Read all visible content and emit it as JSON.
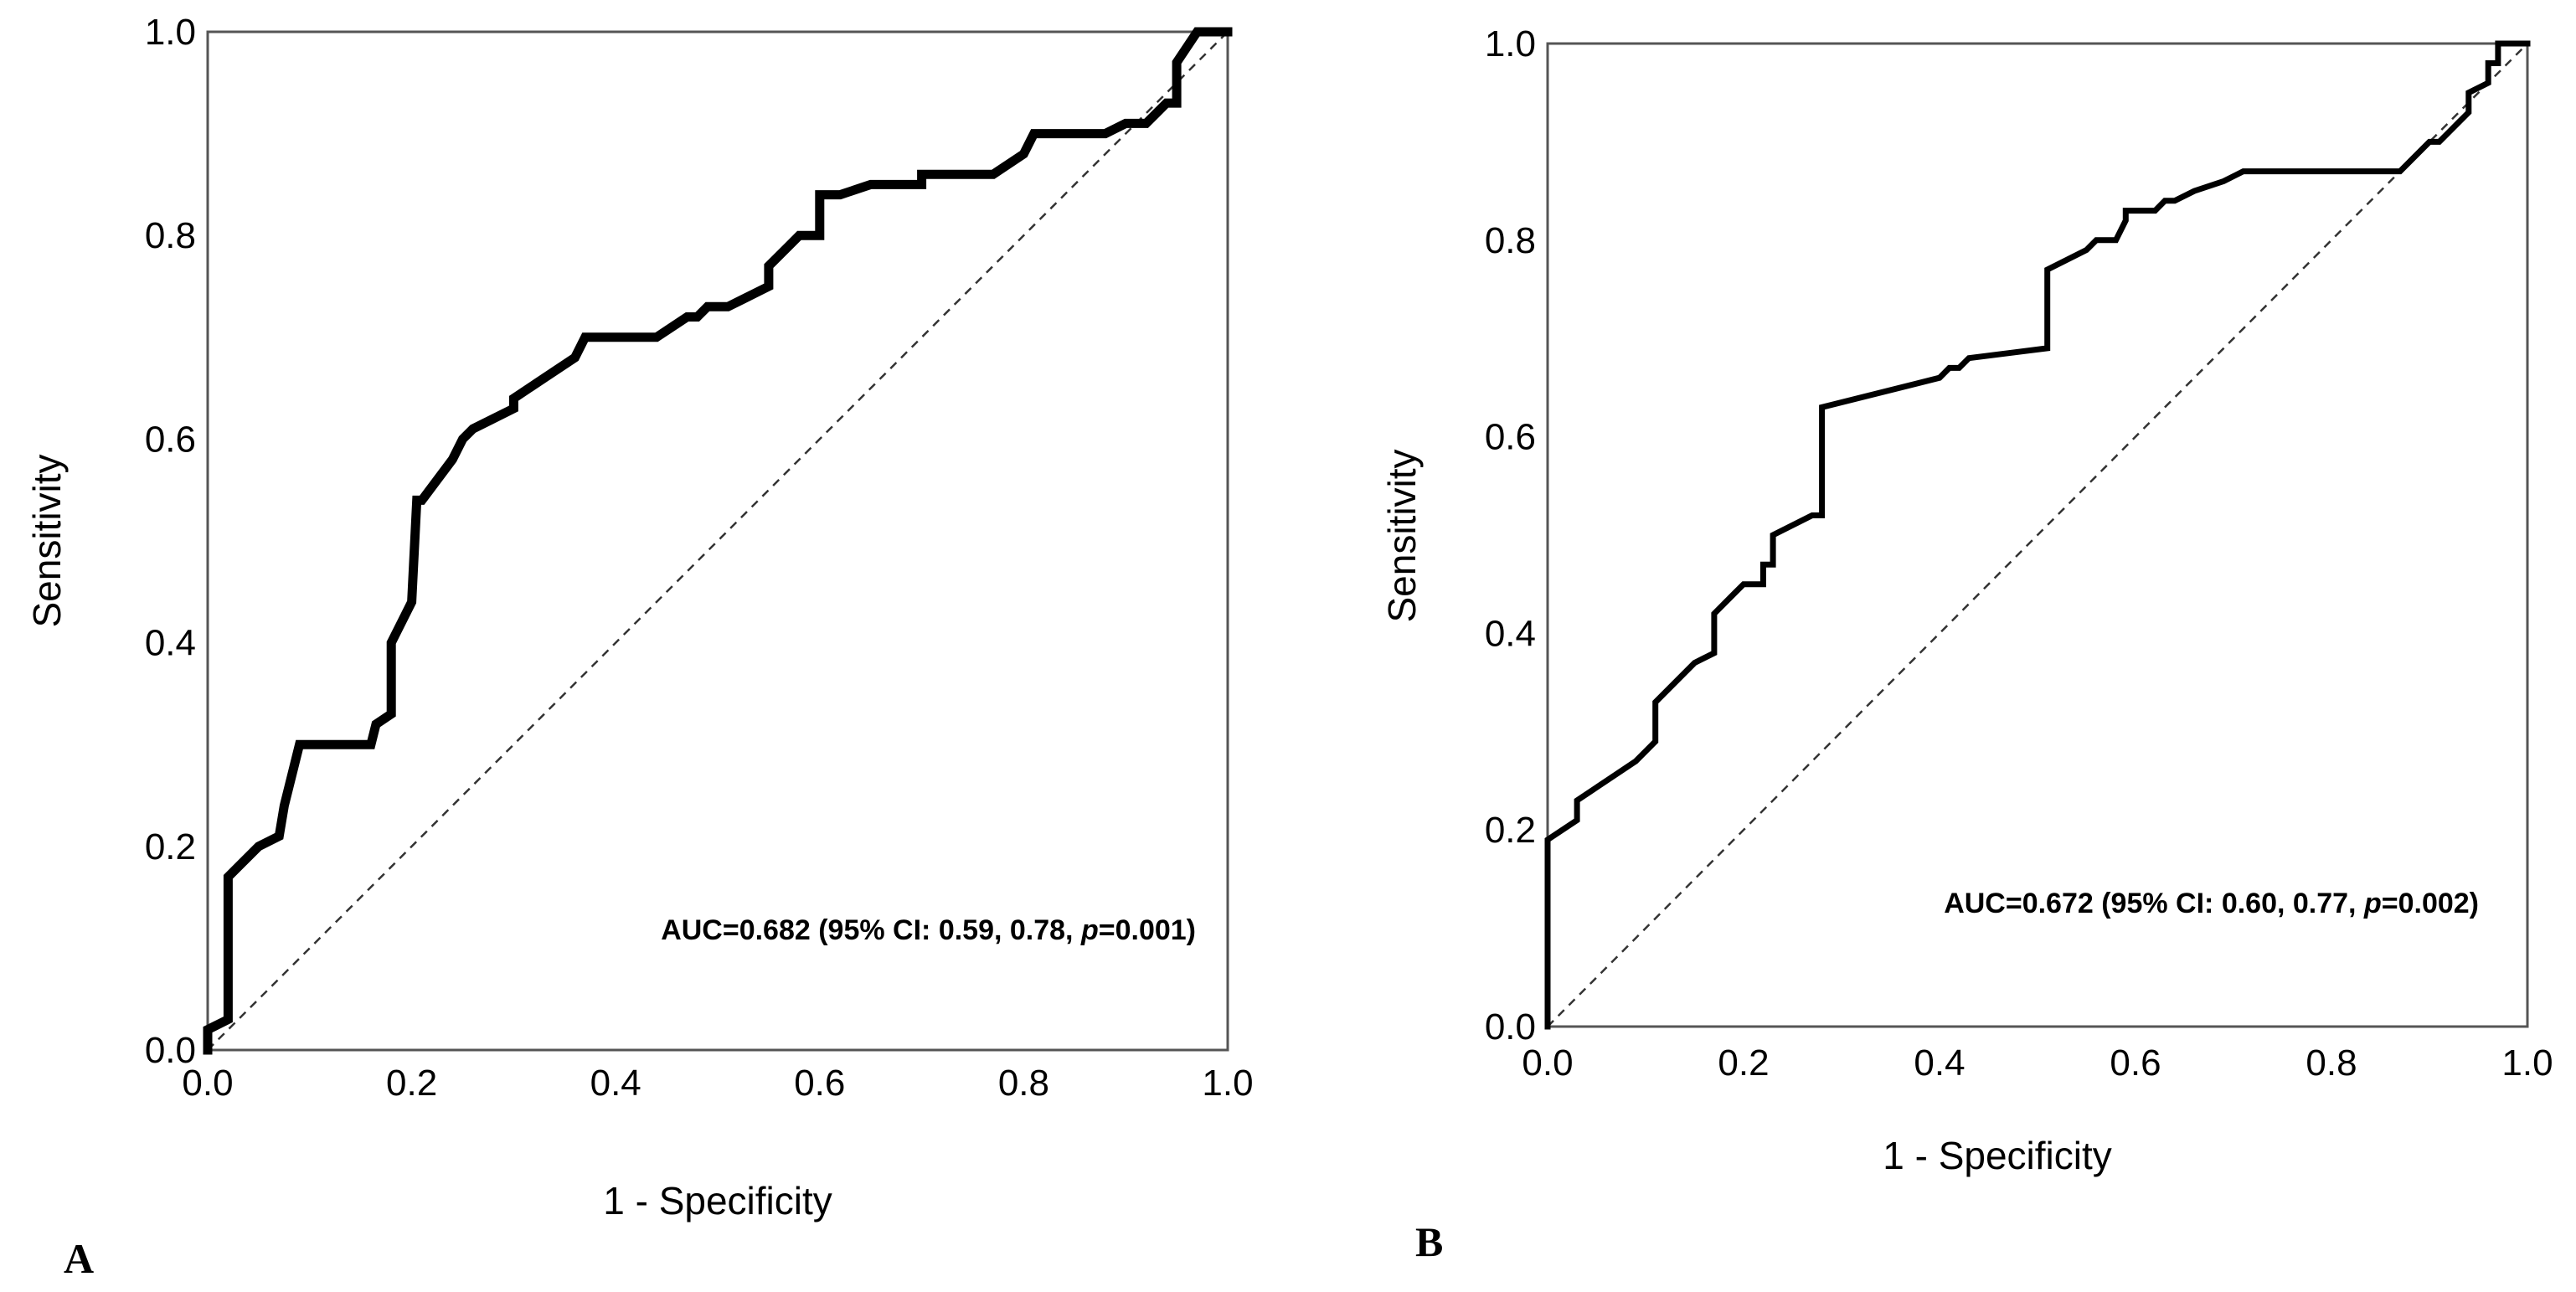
{
  "chart_data": [
    {
      "type": "line",
      "panel_label": "A",
      "title": "",
      "xlabel": "1 - Specificity",
      "ylabel": "Sensitivity",
      "xlim": [
        0,
        1
      ],
      "ylim": [
        0,
        1
      ],
      "xticks": [
        "0.0",
        "0.2",
        "0.4",
        "0.6",
        "0.8",
        "1.0"
      ],
      "yticks": [
        "0.0",
        "0.2",
        "0.4",
        "0.6",
        "0.8",
        "1.0"
      ],
      "annotation": {
        "prefix": "AUC=0.682 (95% CI: 0.59, 0.78, ",
        "p_symbol": "p",
        "suffix": "=0.001)"
      },
      "series": [
        {
          "name": "ROC",
          "x": [
            0,
            0,
            0.02,
            0.02,
            0.03,
            0.03,
            0.05,
            0.07,
            0.075,
            0.09,
            0.16,
            0.165,
            0.18,
            0.18,
            0.19,
            0.2,
            0.205,
            0.21,
            0.24,
            0.25,
            0.26,
            0.28,
            0.3,
            0.3,
            0.33,
            0.36,
            0.37,
            0.44,
            0.47,
            0.48,
            0.49,
            0.49,
            0.51,
            0.53,
            0.55,
            0.55,
            0.57,
            0.58,
            0.6,
            0.6,
            0.62,
            0.65,
            0.65,
            0.7,
            0.7,
            0.77,
            0.8,
            0.81,
            0.87,
            0.88,
            0.9,
            0.92,
            0.93,
            0.94,
            0.95,
            0.95,
            0.97,
            1.0
          ],
          "y": [
            0,
            0.02,
            0.03,
            0.17,
            0.18,
            0.18,
            0.2,
            0.21,
            0.24,
            0.3,
            0.3,
            0.32,
            0.33,
            0.4,
            0.42,
            0.44,
            0.54,
            0.54,
            0.58,
            0.6,
            0.61,
            0.62,
            0.63,
            0.64,
            0.66,
            0.68,
            0.7,
            0.7,
            0.72,
            0.72,
            0.73,
            0.73,
            0.73,
            0.74,
            0.75,
            0.77,
            0.79,
            0.8,
            0.8,
            0.84,
            0.84,
            0.85,
            0.85,
            0.85,
            0.86,
            0.86,
            0.88,
            0.9,
            0.9,
            0.9,
            0.91,
            0.91,
            0.92,
            0.93,
            0.93,
            0.97,
            1.0,
            1.0
          ]
        },
        {
          "name": "Reference",
          "x": [
            0,
            1
          ],
          "y": [
            0,
            1
          ]
        }
      ]
    },
    {
      "type": "line",
      "panel_label": "B",
      "title": "",
      "xlabel": "1 - Specificity",
      "ylabel": "Sensitivity",
      "xlim": [
        0,
        1
      ],
      "ylim": [
        0,
        1
      ],
      "xticks": [
        "0.0",
        "0.2",
        "0.4",
        "0.6",
        "0.8",
        "1.0"
      ],
      "yticks": [
        "0.0",
        "0.2",
        "0.4",
        "0.6",
        "0.8",
        "1.0"
      ],
      "annotation": {
        "prefix": "AUC=0.672 (95% CI: 0.60, 0.77, ",
        "p_symbol": "p",
        "suffix": "=0.002)"
      },
      "series": [
        {
          "name": "ROC",
          "x": [
            0,
            0,
            0.03,
            0.03,
            0.06,
            0.09,
            0.11,
            0.11,
            0.13,
            0.15,
            0.17,
            0.17,
            0.19,
            0.2,
            0.22,
            0.22,
            0.23,
            0.23,
            0.27,
            0.28,
            0.28,
            0.4,
            0.41,
            0.42,
            0.43,
            0.51,
            0.51,
            0.55,
            0.56,
            0.58,
            0.59,
            0.59,
            0.62,
            0.63,
            0.64,
            0.66,
            0.69,
            0.71,
            0.86,
            0.87,
            0.88,
            0.9,
            0.91,
            0.93,
            0.94,
            0.94,
            0.96,
            0.96,
            0.97,
            0.97,
            1.0
          ],
          "y": [
            0,
            0.19,
            0.21,
            0.23,
            0.25,
            0.27,
            0.29,
            0.33,
            0.35,
            0.37,
            0.38,
            0.42,
            0.44,
            0.45,
            0.45,
            0.47,
            0.47,
            0.5,
            0.52,
            0.52,
            0.63,
            0.66,
            0.67,
            0.67,
            0.68,
            0.69,
            0.77,
            0.79,
            0.8,
            0.8,
            0.82,
            0.83,
            0.83,
            0.84,
            0.84,
            0.85,
            0.86,
            0.87,
            0.87,
            0.87,
            0.88,
            0.9,
            0.9,
            0.92,
            0.93,
            0.95,
            0.96,
            0.98,
            0.98,
            1.0,
            1.0
          ]
        },
        {
          "name": "Reference",
          "x": [
            0,
            1
          ],
          "y": [
            0,
            1
          ]
        }
      ]
    }
  ]
}
